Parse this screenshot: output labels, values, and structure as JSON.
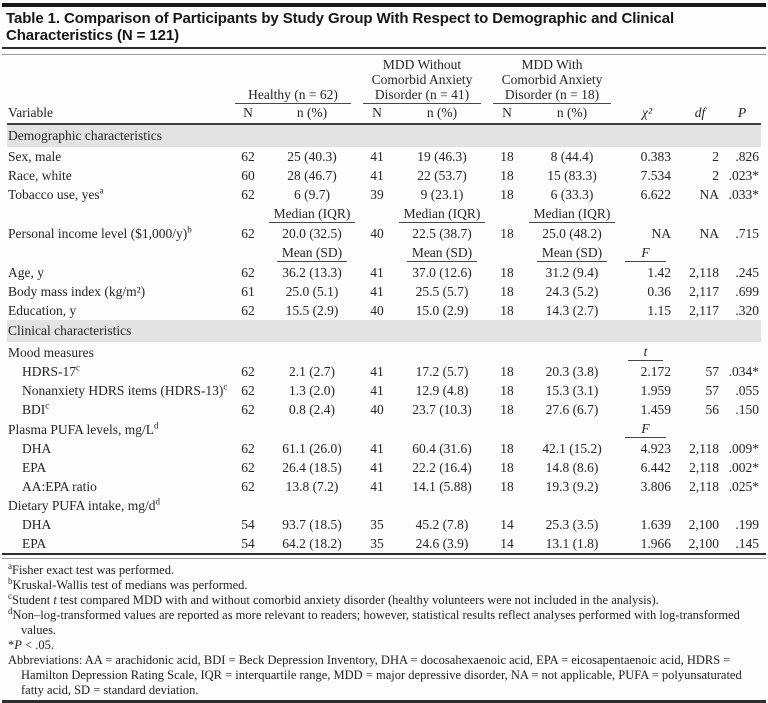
{
  "title": "Table 1. Comparison of Participants by Study Group With Respect to Demographic and Clinical Characteristics (N = 121)",
  "header": {
    "variable_label": "Variable",
    "groups": [
      {
        "title": "Healthy (n = 62)",
        "sub": [
          "N",
          "n (%)"
        ]
      },
      {
        "title": "MDD Without Comorbid Anxiety Disorder (n = 41)",
        "sub": [
          "N",
          "n (%)"
        ]
      },
      {
        "title": "MDD With Comorbid Anxiety Disorder (n = 18)",
        "sub": [
          "N",
          "n (%)"
        ]
      }
    ],
    "stat_cols": [
      "χ²",
      "df",
      "P"
    ]
  },
  "rows": [
    {
      "type": "section",
      "label": "Demographic characteristics"
    },
    {
      "type": "data",
      "label": "Sex, male",
      "indent": 0,
      "cells": [
        "62",
        "25 (40.3)",
        "41",
        "19 (46.3)",
        "18",
        "8 (44.4)",
        "0.383",
        "2",
        ".826"
      ]
    },
    {
      "type": "data",
      "label": "Race, white",
      "indent": 0,
      "cells": [
        "60",
        "28 (46.7)",
        "41",
        "22 (53.7)",
        "18",
        "15 (83.3)",
        "7.534",
        "2",
        ".023*"
      ]
    },
    {
      "type": "data",
      "label": "Tobacco use, yes^a",
      "indent": 0,
      "cells": [
        "62",
        "6 (9.7)",
        "39",
        "9 (23.1)",
        "18",
        "6 (33.3)",
        "6.622",
        "NA",
        ".033*"
      ]
    },
    {
      "type": "subhead",
      "sub_label": "Median (IQR)",
      "stat_label": ""
    },
    {
      "type": "data",
      "label": "Personal income level ($1,000/y)^b",
      "indent": 0,
      "cells": [
        "62",
        "20.0 (32.5)",
        "40",
        "22.5 (38.7)",
        "18",
        "25.0 (48.2)",
        "NA",
        "NA",
        ".715"
      ]
    },
    {
      "type": "subhead",
      "sub_label": "Mean (SD)",
      "stat_label": "F"
    },
    {
      "type": "data",
      "label": "Age, y",
      "indent": 0,
      "cells": [
        "62",
        "36.2 (13.3)",
        "41",
        "37.0 (12.6)",
        "18",
        "31.2 (9.4)",
        "1.42",
        "2,118",
        ".245"
      ]
    },
    {
      "type": "data",
      "label": "Body mass index (kg/m²)",
      "indent": 0,
      "cells": [
        "61",
        "25.0 (5.1)",
        "41",
        "25.5 (5.7)",
        "18",
        "24.3 (5.2)",
        "0.36",
        "2,117",
        ".699"
      ]
    },
    {
      "type": "data",
      "label": "Education, y",
      "indent": 0,
      "cells": [
        "62",
        "15.5 (2.9)",
        "40",
        "15.0 (2.9)",
        "18",
        "14.3 (2.7)",
        "1.15",
        "2,117",
        ".320"
      ]
    },
    {
      "type": "section",
      "label": "Clinical characteristics"
    },
    {
      "type": "group",
      "label": "Mood measures",
      "stat_label": "t"
    },
    {
      "type": "data",
      "label": "HDRS-17^c",
      "indent": 1,
      "cells": [
        "62",
        "2.1 (2.7)",
        "41",
        "17.2 (5.7)",
        "18",
        "20.3 (3.8)",
        "2.172",
        "57",
        ".034*"
      ]
    },
    {
      "type": "data",
      "label": "Nonanxiety HDRS items (HDRS-13)^c",
      "indent": 1,
      "cells": [
        "62",
        "1.3 (2.0)",
        "41",
        "12.9 (4.8)",
        "18",
        "15.3 (3.1)",
        "1.959",
        "57",
        ".055"
      ]
    },
    {
      "type": "data",
      "label": "BDI^c",
      "indent": 1,
      "cells": [
        "62",
        "0.8 (2.4)",
        "40",
        "23.7 (10.3)",
        "18",
        "27.6 (6.7)",
        "1.459",
        "56",
        ".150"
      ]
    },
    {
      "type": "group",
      "label": "Plasma PUFA levels, mg/L^d",
      "stat_label": "F"
    },
    {
      "type": "data",
      "label": "DHA",
      "indent": 1,
      "cells": [
        "62",
        "61.1 (26.0)",
        "41",
        "60.4 (31.6)",
        "18",
        "42.1 (15.2)",
        "4.923",
        "2,118",
        ".009*"
      ]
    },
    {
      "type": "data",
      "label": "EPA",
      "indent": 1,
      "cells": [
        "62",
        "26.4 (18.5)",
        "41",
        "22.2 (16.4)",
        "18",
        "14.8 (8.6)",
        "6.442",
        "2,118",
        ".002*"
      ]
    },
    {
      "type": "data",
      "label": "AA:EPA ratio",
      "indent": 1,
      "cells": [
        "62",
        "13.8 (7.2)",
        "41",
        "14.1 (5.88)",
        "18",
        "19.3 (9.2)",
        "3.806",
        "2,118",
        ".025*"
      ]
    },
    {
      "type": "group",
      "label": "Dietary PUFA intake, mg/d^d",
      "stat_label": ""
    },
    {
      "type": "data",
      "label": "DHA",
      "indent": 1,
      "cells": [
        "54",
        "93.7 (18.5)",
        "35",
        "45.2 (7.8)",
        "14",
        "25.3 (3.5)",
        "1.639",
        "2,100",
        ".199"
      ]
    },
    {
      "type": "data",
      "label": "EPA",
      "indent": 1,
      "cells": [
        "54",
        "64.2 (18.2)",
        "35",
        "24.6 (3.9)",
        "14",
        "13.1 (1.8)",
        "1.966",
        "2,100",
        ".145"
      ]
    }
  ],
  "footnotes": [
    {
      "sup": "a",
      "text": "Fisher exact test was performed."
    },
    {
      "sup": "b",
      "text": "Kruskal-Wallis test of medians was performed."
    },
    {
      "sup": "c",
      "text": "Student ~t~ test compared MDD with and without comorbid anxiety disorder (healthy volunteers were not included in the analysis)."
    },
    {
      "sup": "d",
      "text": "Non–log-transformed values are reported as more relevant to readers; however, statistical results reflect analyses performed with log-transformed values."
    },
    {
      "sup": "",
      "text": "*~P~ < .05."
    },
    {
      "sup": "",
      "text": "Abbreviations: AA = arachidonic acid, BDI = Beck Depression Inventory, DHA = docosahexaenoic acid, EPA = eicosapentaenoic acid, HDRS = Hamilton Depression Rating Scale, IQR = interquartile range, MDD = major depressive disorder, NA = not applicable, PUFA = polyunsaturated fatty acid, SD = standard deviation."
    }
  ],
  "colors": {
    "section_band": "#e3e3e3",
    "rule": "#2e2e2e",
    "text": "#262626"
  }
}
